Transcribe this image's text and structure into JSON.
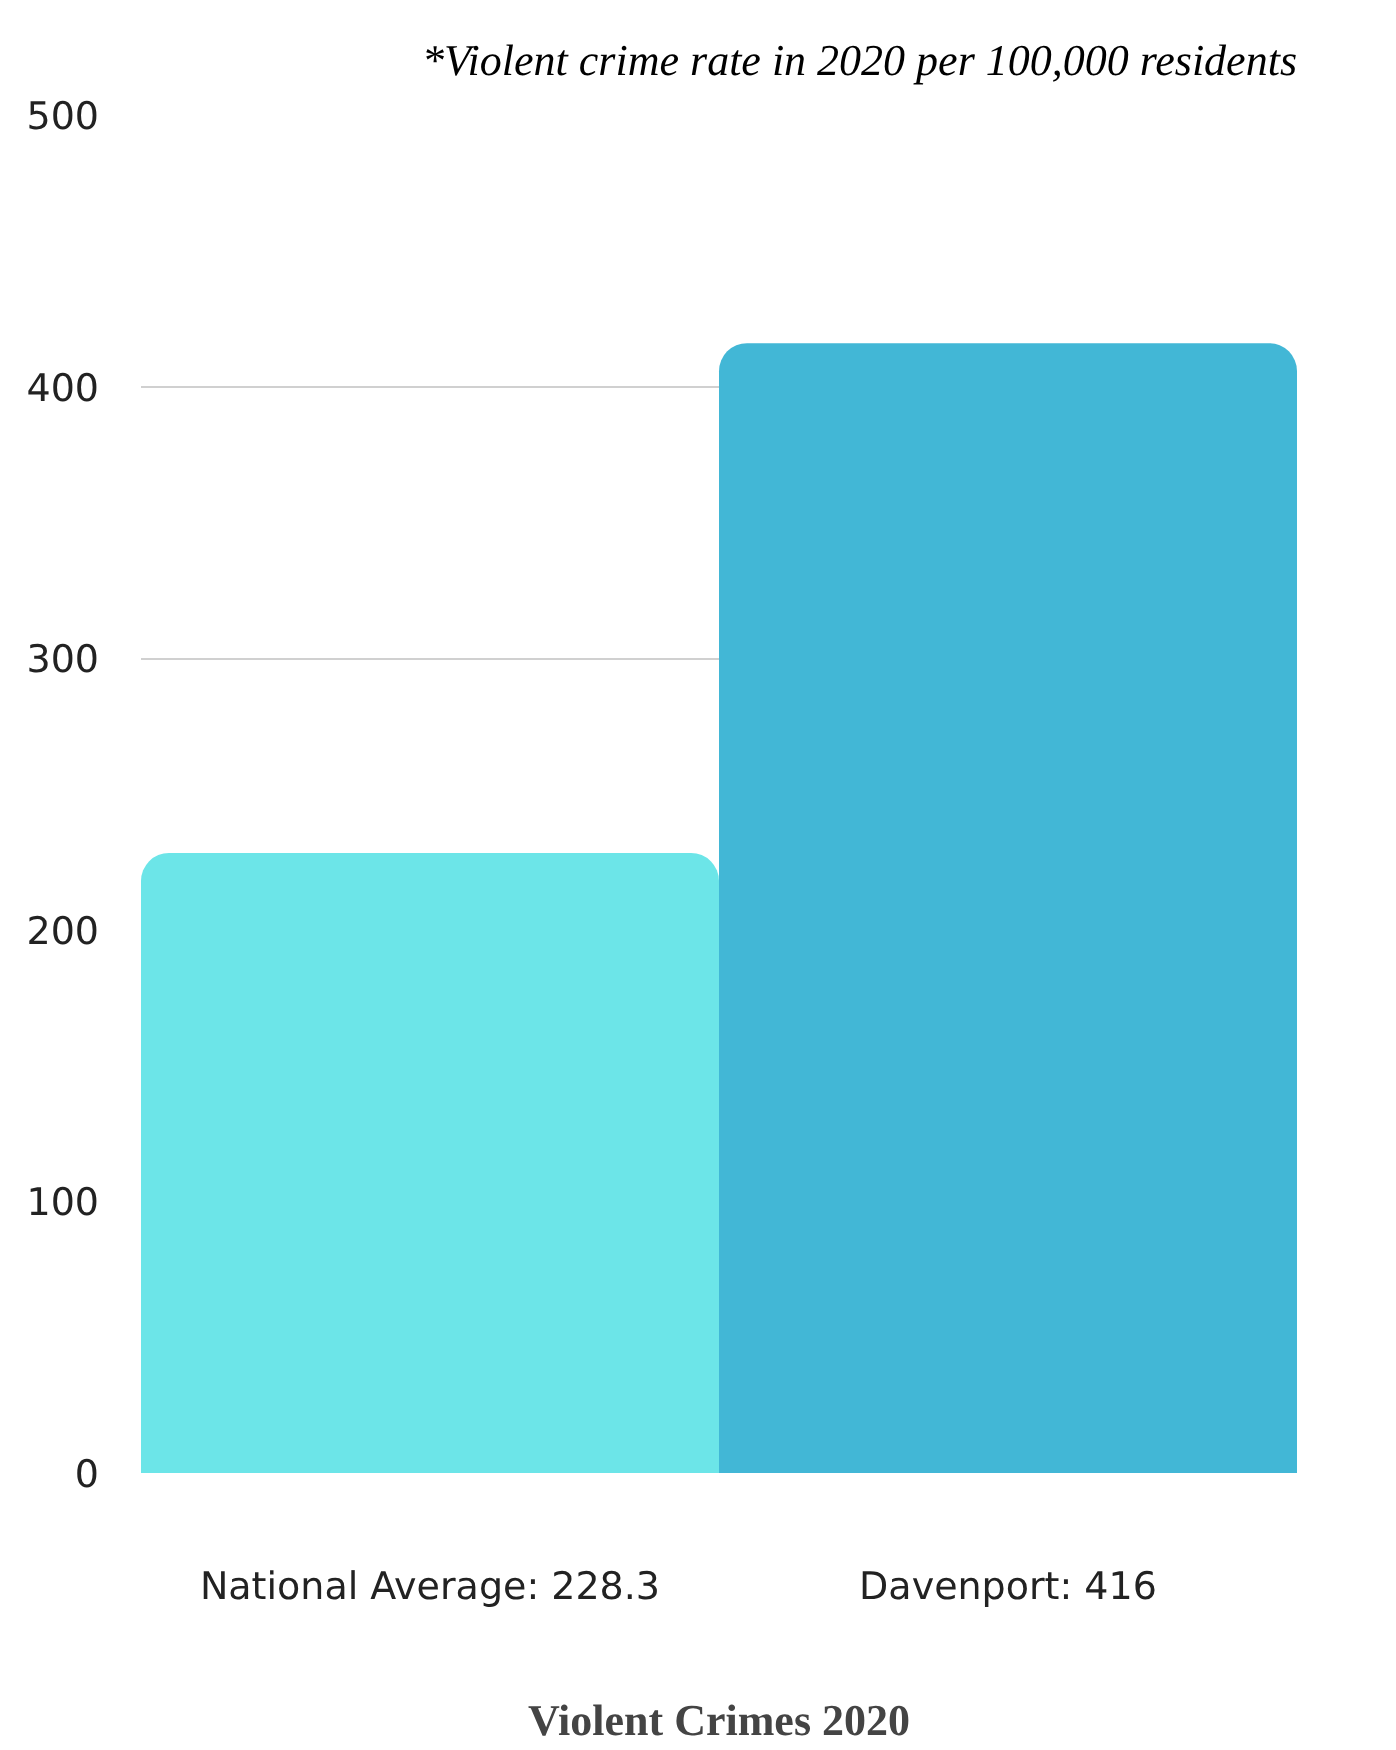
{
  "chart_data": {
    "type": "bar",
    "title": "*Violent crime rate in 2020 per 100,000 residents",
    "xlabel": "Violent Crimes 2020",
    "categories": [
      "National Average: 228.3",
      "Davenport: 416"
    ],
    "values": [
      228.3,
      416
    ],
    "colors": [
      "#6ce5e8",
      "#42b7d6"
    ],
    "ylim": [
      0,
      500
    ],
    "yticks": [
      0,
      100,
      200,
      300,
      400,
      500
    ],
    "grid": "y"
  }
}
